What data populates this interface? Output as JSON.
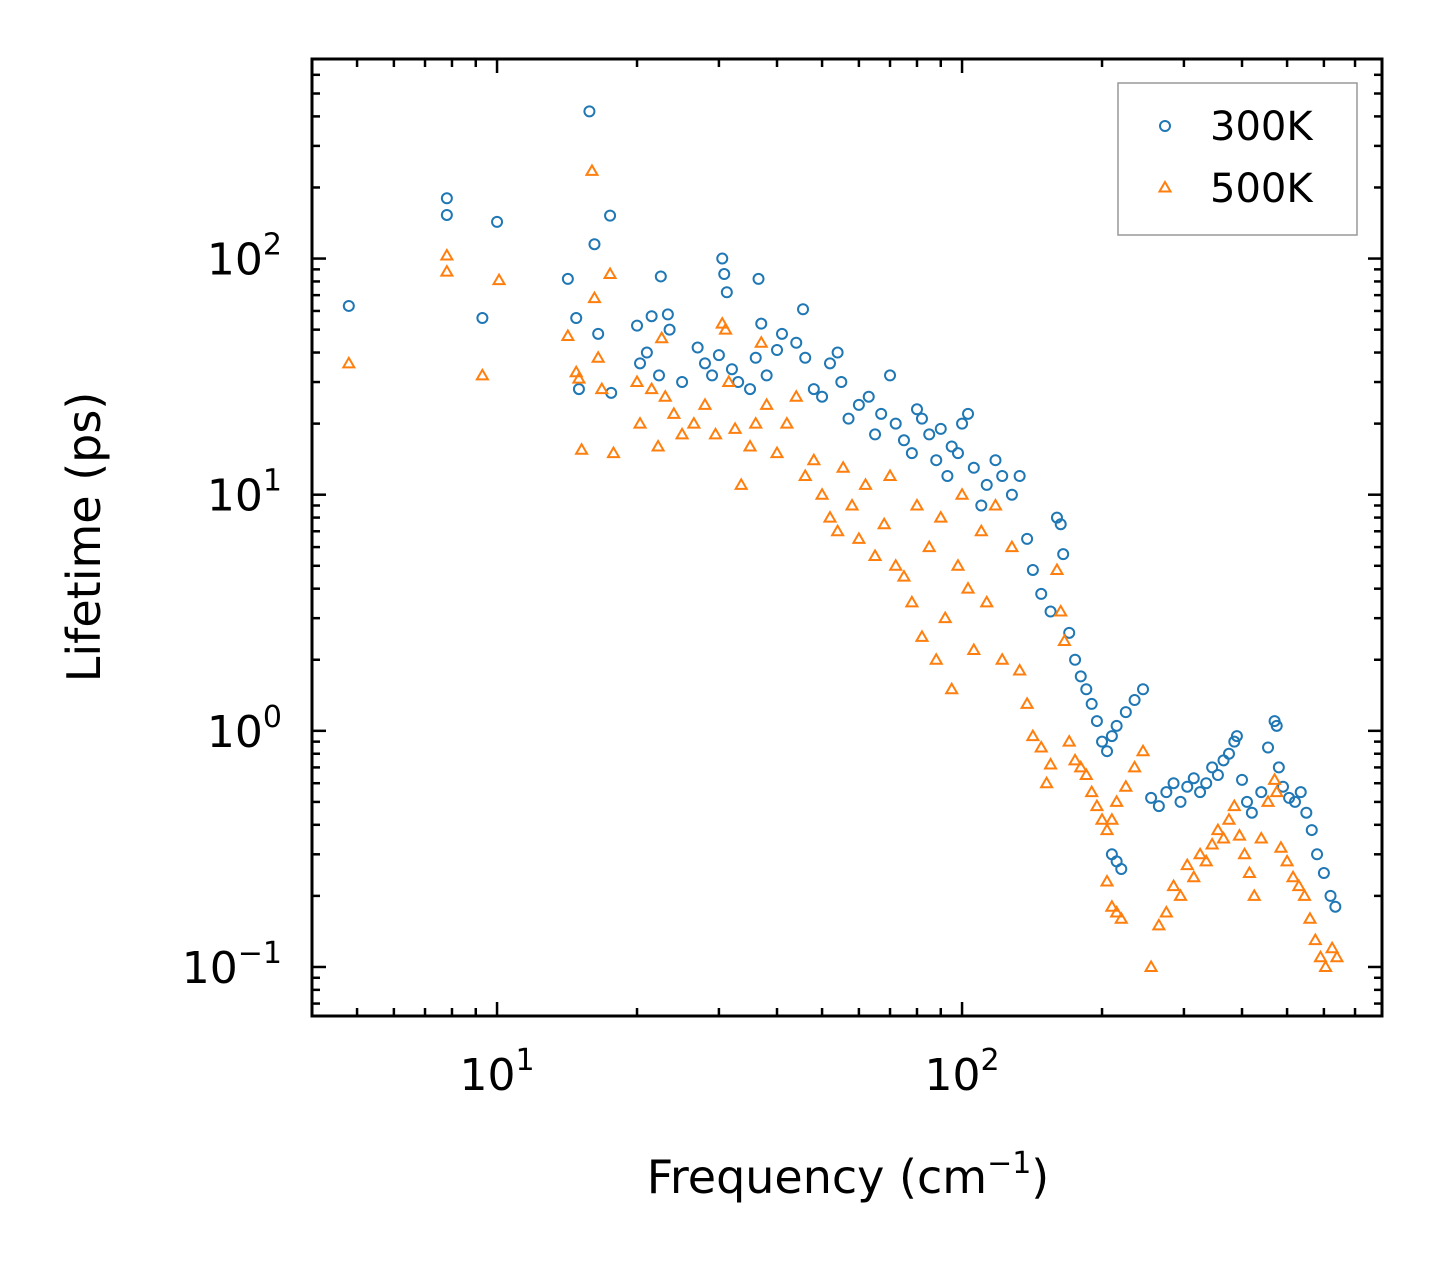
{
  "chart_data": {
    "type": "scatter",
    "xscale": "log",
    "yscale": "log",
    "xlim": [
      4,
      800
    ],
    "ylim": [
      0.062,
      700
    ],
    "xlabel": "Frequency (cm",
    "xlabel_sup": "−1",
    "xlabel_close": ")",
    "ylabel": "Lifetime (ps)",
    "xticks": [
      {
        "base": "10",
        "exp": "1",
        "value": 10
      },
      {
        "base": "10",
        "exp": "2",
        "value": 100
      }
    ],
    "yticks": [
      {
        "base": "10",
        "exp": "−1",
        "value": 0.1
      },
      {
        "base": "10",
        "exp": "0",
        "value": 1
      },
      {
        "base": "10",
        "exp": "1",
        "value": 10
      },
      {
        "base": "10",
        "exp": "2",
        "value": 100
      }
    ],
    "legend": {
      "position": "top-right",
      "entries": [
        {
          "label": "300K",
          "marker": "circle",
          "color": "#1f77b4"
        },
        {
          "label": "500K",
          "marker": "triangle",
          "color": "#ff7f0e"
        }
      ]
    },
    "series": [
      {
        "name": "300K",
        "marker": "circle",
        "color": "#1f77b4",
        "points": [
          [
            4.8,
            63
          ],
          [
            7.8,
            180
          ],
          [
            7.8,
            153
          ],
          [
            9.3,
            56
          ],
          [
            10.0,
            143
          ],
          [
            14.2,
            82
          ],
          [
            14.8,
            56
          ],
          [
            15.0,
            28
          ],
          [
            15.8,
            420
          ],
          [
            16.2,
            115
          ],
          [
            16.5,
            48
          ],
          [
            17.5,
            152
          ],
          [
            17.6,
            27
          ],
          [
            20.0,
            52
          ],
          [
            20.3,
            36
          ],
          [
            21.0,
            40
          ],
          [
            21.5,
            57
          ],
          [
            22.3,
            32
          ],
          [
            22.5,
            84
          ],
          [
            23.3,
            58
          ],
          [
            23.5,
            50
          ],
          [
            25.0,
            30
          ],
          [
            27.0,
            42
          ],
          [
            28.0,
            36
          ],
          [
            29.0,
            32
          ],
          [
            30.0,
            39
          ],
          [
            30.5,
            100
          ],
          [
            30.8,
            86
          ],
          [
            31.2,
            72
          ],
          [
            32.0,
            34
          ],
          [
            33.0,
            30
          ],
          [
            35.0,
            28
          ],
          [
            36.0,
            38
          ],
          [
            36.5,
            82
          ],
          [
            37.0,
            53
          ],
          [
            38.0,
            32
          ],
          [
            40.0,
            41
          ],
          [
            41.0,
            48
          ],
          [
            44.0,
            44
          ],
          [
            45.5,
            61
          ],
          [
            46.0,
            38
          ],
          [
            48.0,
            28
          ],
          [
            50.0,
            26
          ],
          [
            52.0,
            36
          ],
          [
            54.0,
            40
          ],
          [
            55.0,
            30
          ],
          [
            57.0,
            21
          ],
          [
            60.0,
            24
          ],
          [
            63.0,
            26
          ],
          [
            65.0,
            18
          ],
          [
            67.0,
            22
          ],
          [
            70.0,
            32
          ],
          [
            72.0,
            20
          ],
          [
            75.0,
            17
          ],
          [
            78.0,
            15
          ],
          [
            80.0,
            23
          ],
          [
            82.0,
            21
          ],
          [
            85.0,
            18
          ],
          [
            88.0,
            14
          ],
          [
            90.0,
            19
          ],
          [
            93.0,
            12
          ],
          [
            95.0,
            16
          ],
          [
            98.0,
            15
          ],
          [
            100.0,
            20
          ],
          [
            103.0,
            22
          ],
          [
            106.0,
            13
          ],
          [
            110.0,
            9
          ],
          [
            113.0,
            11
          ],
          [
            118.0,
            14
          ],
          [
            122.0,
            12
          ],
          [
            128.0,
            10
          ],
          [
            133.0,
            12
          ],
          [
            138.0,
            6.5
          ],
          [
            142.0,
            4.8
          ],
          [
            148.0,
            3.8
          ],
          [
            155.0,
            3.2
          ],
          [
            160.0,
            8
          ],
          [
            163.0,
            7.5
          ],
          [
            165.0,
            5.6
          ],
          [
            170.0,
            2.6
          ],
          [
            175.0,
            2.0
          ],
          [
            180.0,
            1.7
          ],
          [
            185.0,
            1.5
          ],
          [
            190.0,
            1.3
          ],
          [
            195.0,
            1.1
          ],
          [
            200.0,
            0.9
          ],
          [
            205.0,
            0.82
          ],
          [
            210.0,
            0.95
          ],
          [
            215.0,
            1.05
          ],
          [
            225.0,
            1.2
          ],
          [
            235.0,
            1.35
          ],
          [
            245.0,
            1.5
          ],
          [
            210.0,
            0.3
          ],
          [
            215.0,
            0.28
          ],
          [
            220.0,
            0.26
          ],
          [
            255.0,
            0.52
          ],
          [
            265.0,
            0.48
          ],
          [
            275.0,
            0.55
          ],
          [
            285.0,
            0.6
          ],
          [
            295.0,
            0.5
          ],
          [
            305.0,
            0.58
          ],
          [
            315.0,
            0.63
          ],
          [
            325.0,
            0.55
          ],
          [
            335.0,
            0.6
          ],
          [
            345.0,
            0.7
          ],
          [
            355.0,
            0.65
          ],
          [
            365.0,
            0.75
          ],
          [
            375.0,
            0.8
          ],
          [
            385.0,
            0.9
          ],
          [
            390.0,
            0.95
          ],
          [
            400.0,
            0.62
          ],
          [
            410.0,
            0.5
          ],
          [
            420.0,
            0.45
          ],
          [
            440.0,
            0.55
          ],
          [
            455.0,
            0.85
          ],
          [
            470.0,
            1.1
          ],
          [
            475.0,
            1.05
          ],
          [
            480.0,
            0.7
          ],
          [
            490.0,
            0.58
          ],
          [
            505.0,
            0.52
          ],
          [
            520.0,
            0.5
          ],
          [
            535.0,
            0.55
          ],
          [
            550.0,
            0.45
          ],
          [
            565.0,
            0.38
          ],
          [
            580.0,
            0.3
          ],
          [
            600.0,
            0.25
          ],
          [
            620.0,
            0.2
          ],
          [
            635.0,
            0.18
          ]
        ]
      },
      {
        "name": "500K",
        "marker": "triangle",
        "color": "#ff7f0e",
        "points": [
          [
            4.8,
            36
          ],
          [
            7.8,
            103
          ],
          [
            7.8,
            88
          ],
          [
            9.3,
            32
          ],
          [
            10.1,
            81
          ],
          [
            14.2,
            47
          ],
          [
            14.8,
            33
          ],
          [
            15.0,
            31
          ],
          [
            15.2,
            15.5
          ],
          [
            16.0,
            235
          ],
          [
            16.2,
            68
          ],
          [
            16.5,
            38
          ],
          [
            16.8,
            28
          ],
          [
            17.5,
            86
          ],
          [
            17.8,
            15
          ],
          [
            20.0,
            30
          ],
          [
            20.3,
            20
          ],
          [
            21.5,
            28
          ],
          [
            22.2,
            16
          ],
          [
            22.6,
            46
          ],
          [
            23.0,
            26
          ],
          [
            24.0,
            22
          ],
          [
            25.0,
            18
          ],
          [
            26.5,
            20
          ],
          [
            28.0,
            24
          ],
          [
            29.5,
            18
          ],
          [
            30.5,
            53
          ],
          [
            31.0,
            50
          ],
          [
            31.5,
            30
          ],
          [
            32.5,
            19
          ],
          [
            33.5,
            11
          ],
          [
            35.0,
            16
          ],
          [
            36.0,
            20
          ],
          [
            37.0,
            44
          ],
          [
            38.0,
            24
          ],
          [
            40.0,
            15
          ],
          [
            42.0,
            20
          ],
          [
            44.0,
            26
          ],
          [
            46.0,
            12
          ],
          [
            48.0,
            14
          ],
          [
            50.0,
            10
          ],
          [
            52.0,
            8
          ],
          [
            54.0,
            7
          ],
          [
            55.5,
            13
          ],
          [
            58.0,
            9
          ],
          [
            60.0,
            6.5
          ],
          [
            62.0,
            11
          ],
          [
            65.0,
            5.5
          ],
          [
            68.0,
            7.5
          ],
          [
            70.0,
            12
          ],
          [
            72.0,
            5
          ],
          [
            75.0,
            4.5
          ],
          [
            78.0,
            3.5
          ],
          [
            80.0,
            9
          ],
          [
            82.0,
            2.5
          ],
          [
            85.0,
            6
          ],
          [
            88.0,
            2
          ],
          [
            90.0,
            8
          ],
          [
            92.0,
            3
          ],
          [
            95.0,
            1.5
          ],
          [
            98.0,
            5
          ],
          [
            100.0,
            10
          ],
          [
            103.0,
            4
          ],
          [
            106.0,
            2.2
          ],
          [
            110.0,
            7
          ],
          [
            113.0,
            3.5
          ],
          [
            118.0,
            9
          ],
          [
            122.0,
            2
          ],
          [
            128.0,
            6
          ],
          [
            133.0,
            1.8
          ],
          [
            138.0,
            1.3
          ],
          [
            142.0,
            0.95
          ],
          [
            148.0,
            0.85
          ],
          [
            152.0,
            0.6
          ],
          [
            155.0,
            0.72
          ],
          [
            160.0,
            4.8
          ],
          [
            163.0,
            3.2
          ],
          [
            166.0,
            2.4
          ],
          [
            170.0,
            0.9
          ],
          [
            175.0,
            0.75
          ],
          [
            180.0,
            0.7
          ],
          [
            185.0,
            0.65
          ],
          [
            190.0,
            0.55
          ],
          [
            195.0,
            0.48
          ],
          [
            200.0,
            0.42
          ],
          [
            205.0,
            0.38
          ],
          [
            210.0,
            0.42
          ],
          [
            215.0,
            0.5
          ],
          [
            225.0,
            0.58
          ],
          [
            235.0,
            0.7
          ],
          [
            245.0,
            0.82
          ],
          [
            205.0,
            0.23
          ],
          [
            210.0,
            0.18
          ],
          [
            215.0,
            0.17
          ],
          [
            220.0,
            0.16
          ],
          [
            255.0,
            0.1
          ],
          [
            265.0,
            0.15
          ],
          [
            275.0,
            0.17
          ],
          [
            285.0,
            0.22
          ],
          [
            295.0,
            0.2
          ],
          [
            305.0,
            0.27
          ],
          [
            315.0,
            0.24
          ],
          [
            325.0,
            0.3
          ],
          [
            335.0,
            0.28
          ],
          [
            345.0,
            0.33
          ],
          [
            355.0,
            0.38
          ],
          [
            365.0,
            0.35
          ],
          [
            375.0,
            0.42
          ],
          [
            385.0,
            0.48
          ],
          [
            395.0,
            0.36
          ],
          [
            405.0,
            0.3
          ],
          [
            415.0,
            0.25
          ],
          [
            425.0,
            0.2
          ],
          [
            440.0,
            0.35
          ],
          [
            455.0,
            0.5
          ],
          [
            470.0,
            0.62
          ],
          [
            475.0,
            0.55
          ],
          [
            485.0,
            0.32
          ],
          [
            500.0,
            0.28
          ],
          [
            515.0,
            0.24
          ],
          [
            530.0,
            0.22
          ],
          [
            545.0,
            0.2
          ],
          [
            560.0,
            0.16
          ],
          [
            575.0,
            0.13
          ],
          [
            590.0,
            0.11
          ],
          [
            605.0,
            0.1
          ],
          [
            625.0,
            0.12
          ],
          [
            640.0,
            0.11
          ]
        ]
      }
    ]
  }
}
